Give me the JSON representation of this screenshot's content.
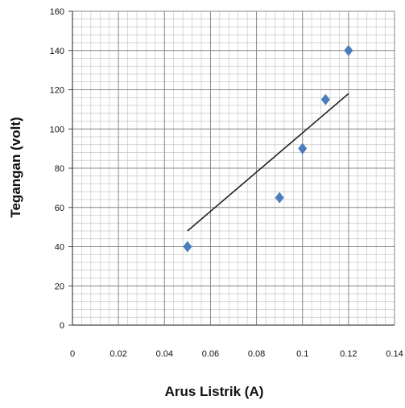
{
  "chart_data": {
    "type": "scatter",
    "title": "",
    "xlabel": "Arus Listrik (A)",
    "ylabel": "Tegangan (volt)",
    "xlim": [
      0,
      0.14
    ],
    "ylim": [
      0,
      160
    ],
    "x_ticks": [
      "0",
      "0.02",
      "0.04",
      "0.06",
      "0.08",
      "0.1",
      "0.12",
      "0.14"
    ],
    "y_ticks": [
      "0",
      "20",
      "40",
      "60",
      "80",
      "100",
      "120",
      "140",
      "160"
    ],
    "grid": true,
    "legend": "none",
    "series": [
      {
        "marker": "diamond",
        "color": "#4a7ebb",
        "points": [
          {
            "x": 0.05,
            "y": 40
          },
          {
            "x": 0.09,
            "y": 65
          },
          {
            "x": 0.1,
            "y": 90
          },
          {
            "x": 0.11,
            "y": 115
          },
          {
            "x": 0.12,
            "y": 140
          }
        ]
      }
    ],
    "trendline": {
      "type": "linear",
      "color": "#222222",
      "x_range": [
        0.05,
        0.12
      ],
      "y_start": 48,
      "y_end": 118
    }
  }
}
